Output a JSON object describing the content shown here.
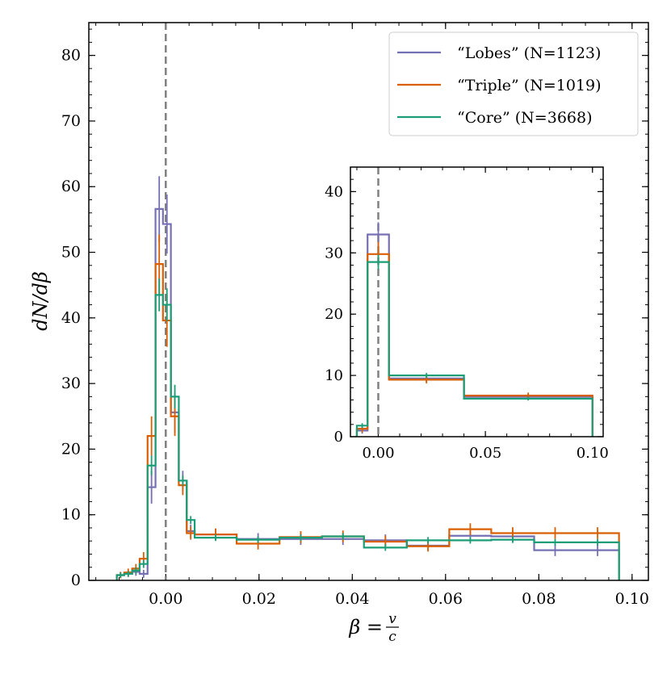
{
  "colors": {
    "lobes": "#7570b3",
    "triple": "#d95f02",
    "core": "#1b9e77",
    "zero_line": "#808080"
  },
  "chart_data": [
    {
      "type": "step-histogram",
      "name": "main",
      "xlabel": "β = v/c",
      "xlabel_parts": {
        "lhs": "β = ",
        "num": "v",
        "den": "c"
      },
      "ylabel": "dN/dβ",
      "xlim": [
        -0.0165,
        0.1035
      ],
      "ylim": [
        0,
        85
      ],
      "x_ticks": [
        0.0,
        0.02,
        0.04,
        0.06,
        0.08,
        0.1
      ],
      "x_tick_labels": [
        "0.00",
        "0.02",
        "0.04",
        "0.06",
        "0.08",
        "0.10"
      ],
      "y_ticks": [
        0,
        10,
        20,
        30,
        40,
        50,
        60,
        70,
        80
      ],
      "y_tick_labels": [
        "0",
        "10",
        "20",
        "30",
        "40",
        "50",
        "60",
        "70",
        "80"
      ],
      "vline_x": 0.0,
      "legend_position": "top-right",
      "legend_entries": [
        {
          "key": "lobes",
          "label": "“Lobes” (N=1123)"
        },
        {
          "key": "triple",
          "label": "“Triple” (N=1019)"
        },
        {
          "key": "core",
          "label": "“Core” (N=3668)"
        }
      ],
      "series": [
        {
          "key": "lobes",
          "name": "“Lobes” (N=1123)",
          "edges": [
            -0.0105,
            -0.0089,
            -0.0072,
            -0.0056,
            -0.0039,
            -0.0022,
            -0.0006,
            0.0011,
            0.0028,
            0.0045,
            0.0062,
            0.0152,
            0.0244,
            0.0335,
            0.0425,
            0.0517,
            0.0608,
            0.0698,
            0.079,
            0.088,
            0.0972
          ],
          "values": [
            0.8,
            1.0,
            1.3,
            1.0,
            14.2,
            56.6,
            54.3,
            25.6,
            15.2,
            7.5,
            7.0,
            6.3,
            6.3,
            6.3,
            6.1,
            5.3,
            6.8,
            6.7,
            4.6,
            4.6
          ],
          "errors": [
            0.5,
            0.5,
            0.6,
            0.6,
            2.5,
            5.0,
            4.5,
            3.0,
            1.5,
            1.0,
            0.9,
            0.9,
            0.9,
            0.9,
            0.9,
            0.8,
            0.9,
            0.9,
            0.9,
            0.9
          ]
        },
        {
          "key": "triple",
          "name": "“Triple” (N=1019)",
          "edges": [
            -0.0105,
            -0.0089,
            -0.0072,
            -0.0056,
            -0.0039,
            -0.0022,
            -0.0006,
            0.0011,
            0.0028,
            0.0045,
            0.0062,
            0.0152,
            0.0244,
            0.0335,
            0.0425,
            0.0517,
            0.0608,
            0.0698,
            0.079,
            0.088,
            0.0972
          ],
          "values": [
            0.8,
            1.2,
            1.8,
            3.3,
            22.0,
            48.2,
            39.6,
            25.0,
            14.5,
            7.2,
            7.0,
            5.6,
            6.6,
            6.7,
            5.9,
            5.2,
            7.8,
            7.2,
            7.2,
            7.2
          ],
          "errors": [
            0.5,
            0.6,
            0.7,
            1.0,
            3.0,
            4.5,
            4.0,
            3.0,
            1.5,
            1.0,
            0.9,
            0.9,
            0.9,
            0.9,
            0.9,
            0.8,
            0.9,
            0.9,
            0.9,
            0.9
          ]
        },
        {
          "key": "core",
          "name": "“Core” (N=3668)",
          "edges": [
            -0.0105,
            -0.0089,
            -0.0072,
            -0.0056,
            -0.0039,
            -0.0022,
            -0.0006,
            0.0011,
            0.0028,
            0.0045,
            0.0062,
            0.0152,
            0.0244,
            0.0335,
            0.0425,
            0.0517,
            0.0608,
            0.0698,
            0.079,
            0.088,
            0.0972
          ],
          "values": [
            0.8,
            1.0,
            1.5,
            2.5,
            17.5,
            43.5,
            42.0,
            28.0,
            15.2,
            9.2,
            6.5,
            6.2,
            6.5,
            6.7,
            5.0,
            6.1,
            6.1,
            6.2,
            5.8,
            5.8
          ],
          "errors": [
            0.4,
            0.4,
            0.5,
            0.6,
            1.5,
            2.5,
            2.5,
            1.8,
            0.8,
            0.6,
            0.5,
            0.5,
            0.5,
            0.5,
            0.5,
            0.5,
            0.5,
            0.5,
            0.5,
            0.5
          ]
        }
      ]
    },
    {
      "type": "step-histogram",
      "name": "inset",
      "xlim": [
        -0.013,
        0.105
      ],
      "ylim": [
        0,
        44
      ],
      "x_ticks": [
        0.0,
        0.05,
        0.1
      ],
      "x_tick_labels": [
        "0.00",
        "0.05",
        "0.10"
      ],
      "y_ticks": [
        0,
        10,
        20,
        30,
        40
      ],
      "y_tick_labels": [
        "0",
        "10",
        "20",
        "30",
        "40"
      ],
      "vline_x": 0.0,
      "series": [
        {
          "key": "lobes",
          "edges": [
            -0.01,
            -0.005,
            0.005,
            0.04,
            0.1
          ],
          "values": [
            1.0,
            33.0,
            9.5,
            6.5
          ],
          "errors": [
            0.5,
            2.0,
            0.6,
            0.5
          ]
        },
        {
          "key": "triple",
          "edges": [
            -0.01,
            -0.005,
            0.005,
            0.04,
            0.1
          ],
          "values": [
            1.3,
            29.8,
            9.3,
            6.7
          ],
          "errors": [
            0.6,
            2.0,
            0.6,
            0.5
          ]
        },
        {
          "key": "core",
          "edges": [
            -0.01,
            -0.005,
            0.005,
            0.04,
            0.1
          ],
          "values": [
            1.8,
            28.5,
            10.0,
            6.2
          ],
          "errors": [
            0.4,
            1.2,
            0.4,
            0.3
          ]
        }
      ]
    }
  ]
}
